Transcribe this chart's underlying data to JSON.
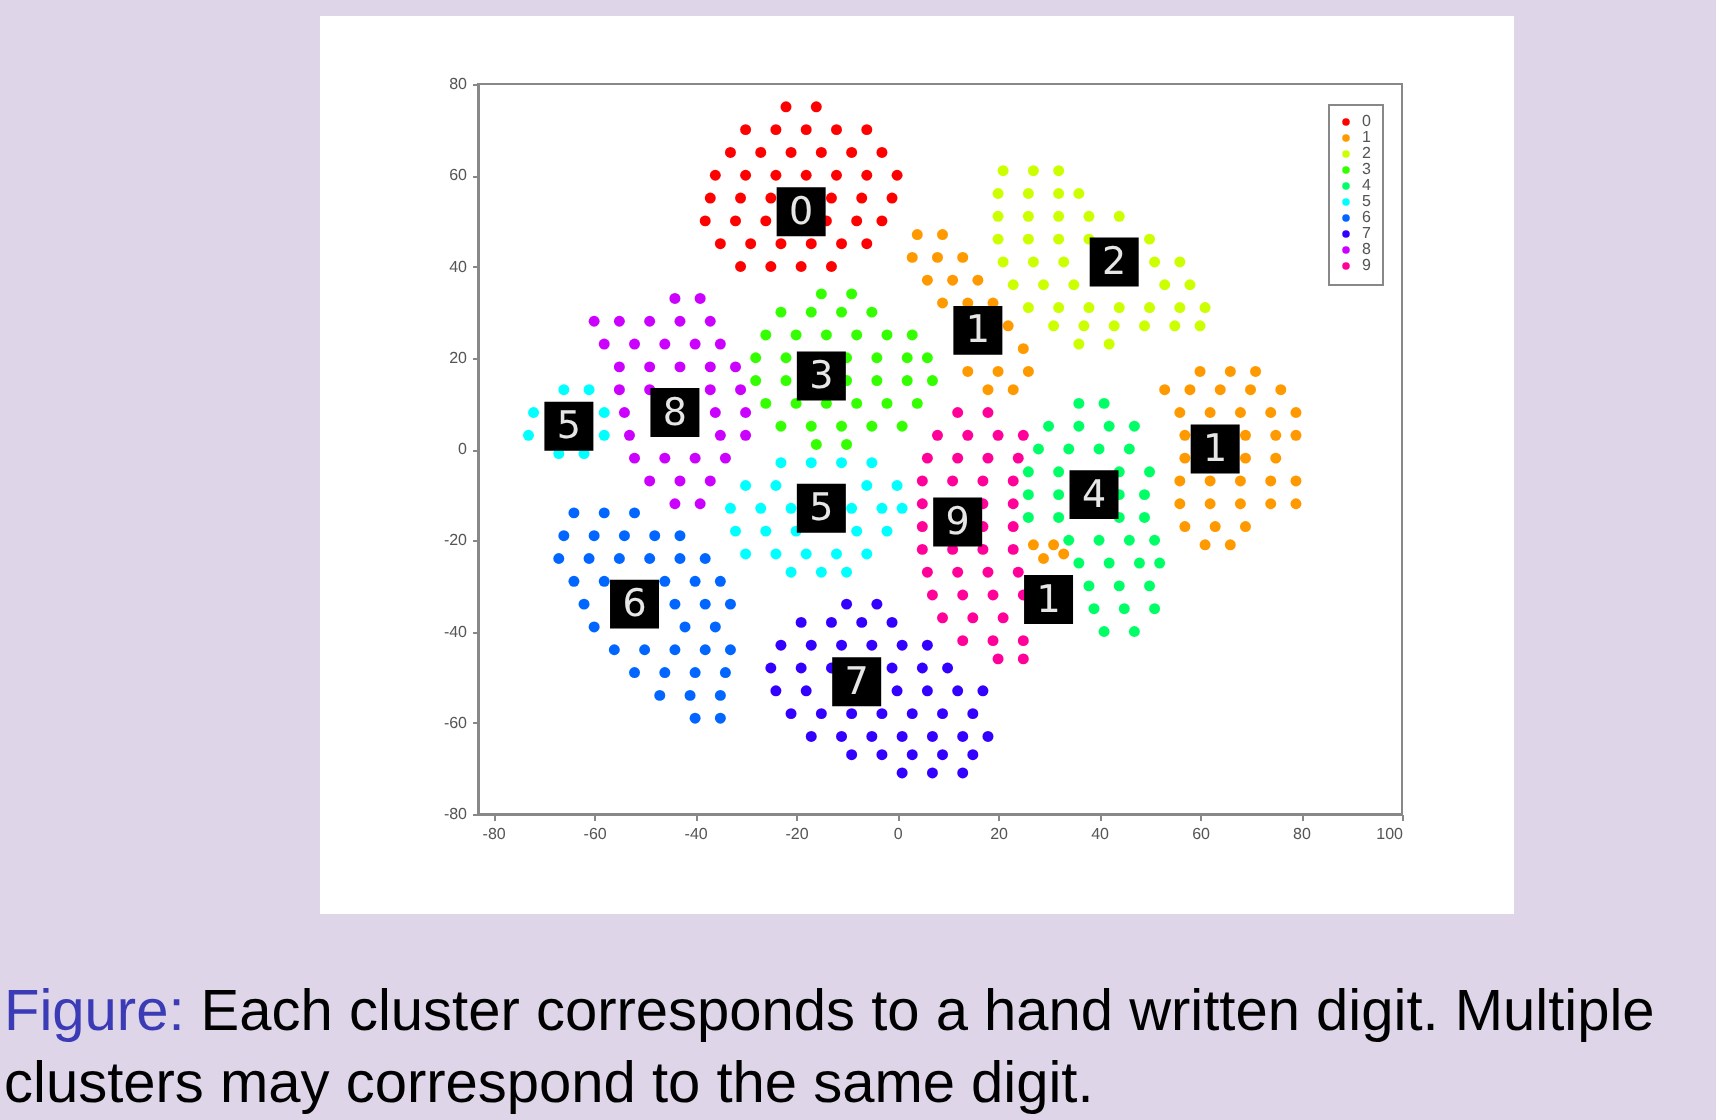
{
  "chart_data": {
    "type": "scatter",
    "xlim": [
      -83,
      100
    ],
    "ylim": [
      -80,
      80
    ],
    "xticks": [
      -80,
      -60,
      -40,
      -20,
      0,
      20,
      40,
      60,
      80,
      100
    ],
    "yticks": [
      -80,
      -60,
      -40,
      -20,
      0,
      20,
      40,
      60,
      80
    ],
    "grid": false,
    "legend": "top right",
    "marker": "circle",
    "series": [
      {
        "name": "0",
        "color": "#ff0000",
        "x": [
          -22,
          -16,
          -30,
          -24,
          -18,
          -12,
          -6,
          -33,
          -27,
          -21,
          -15,
          -9,
          -3,
          -36,
          -30,
          -24,
          -18,
          -12,
          -6,
          0,
          -37,
          -31,
          -25,
          -13,
          -7,
          -1,
          -38,
          -32,
          -26,
          -14,
          -8,
          -3,
          -35,
          -29,
          -23,
          -17,
          -11,
          -6,
          -31,
          -25,
          -19,
          -13
        ],
        "values": [
          75,
          75,
          70,
          70,
          70,
          70,
          70,
          65,
          65,
          65,
          65,
          65,
          65,
          60,
          60,
          60,
          60,
          60,
          60,
          60,
          55,
          55,
          55,
          55,
          55,
          55,
          50,
          50,
          50,
          50,
          50,
          50,
          45,
          45,
          45,
          45,
          45,
          45,
          40,
          40,
          40,
          40
        ]
      },
      {
        "name": "1",
        "color": "#ff9900",
        "x": [
          4,
          9,
          3,
          8,
          13,
          6,
          11,
          16,
          9,
          14,
          19,
          22,
          25,
          14,
          20,
          26,
          18,
          23,
          60,
          66,
          71,
          53,
          58,
          64,
          70,
          76,
          56,
          62,
          68,
          74,
          79,
          57,
          69,
          75,
          79,
          57,
          69,
          75,
          56,
          62,
          68,
          74,
          79,
          56,
          62,
          68,
          74,
          79,
          57,
          63,
          69,
          61,
          66,
          27,
          31,
          29,
          33
        ],
        "values": [
          47,
          47,
          42,
          42,
          42,
          37,
          37,
          37,
          32,
          32,
          32,
          27,
          22,
          17,
          17,
          17,
          13,
          13,
          17,
          17,
          17,
          13,
          13,
          13,
          13,
          13,
          8,
          8,
          8,
          8,
          8,
          3,
          3,
          3,
          3,
          -2,
          -2,
          -2,
          -7,
          -7,
          -7,
          -7,
          -7,
          -12,
          -12,
          -12,
          -12,
          -12,
          -17,
          -17,
          -17,
          -21,
          -21,
          -21,
          -21,
          -24,
          -23
        ]
      },
      {
        "name": "2",
        "color": "#ccff00",
        "x": [
          21,
          27,
          32,
          20,
          26,
          32,
          36,
          20,
          26,
          32,
          38,
          44,
          20,
          26,
          32,
          38,
          50,
          21,
          27,
          33,
          51,
          56,
          23,
          29,
          35,
          53,
          58,
          26,
          32,
          38,
          44,
          50,
          56,
          61,
          31,
          37,
          43,
          49,
          55,
          60,
          36,
          42
        ],
        "values": [
          61,
          61,
          61,
          56,
          56,
          56,
          56,
          51,
          51,
          51,
          51,
          51,
          46,
          46,
          46,
          46,
          46,
          41,
          41,
          41,
          41,
          41,
          36,
          36,
          36,
          36,
          36,
          31,
          31,
          31,
          31,
          31,
          31,
          31,
          27,
          27,
          27,
          27,
          27,
          27,
          23,
          23
        ]
      },
      {
        "name": "3",
        "color": "#33ff00",
        "x": [
          -15,
          -9,
          -23,
          -17,
          -11,
          -5,
          -26,
          -20,
          -14,
          -8,
          -2,
          3,
          -28,
          -22,
          -10,
          -4,
          2,
          6,
          -28,
          -22,
          -10,
          -4,
          2,
          7,
          -26,
          -20,
          -14,
          -8,
          -2,
          4,
          -23,
          -17,
          -11,
          -5,
          1,
          -16,
          -10
        ],
        "values": [
          34,
          34,
          30,
          30,
          30,
          30,
          25,
          25,
          25,
          25,
          25,
          25,
          20,
          20,
          20,
          20,
          20,
          20,
          15,
          15,
          15,
          15,
          15,
          15,
          10,
          10,
          10,
          10,
          10,
          10,
          5,
          5,
          5,
          5,
          5,
          1,
          1
        ]
      },
      {
        "name": "4",
        "color": "#00ff66",
        "x": [
          36,
          41,
          30,
          36,
          42,
          47,
          28,
          34,
          40,
          46,
          26,
          32,
          44,
          50,
          26,
          32,
          44,
          49,
          26,
          32,
          44,
          49,
          34,
          40,
          46,
          51,
          36,
          42,
          48,
          52,
          38,
          44,
          50,
          39,
          45,
          51,
          41,
          47
        ],
        "values": [
          10,
          10,
          5,
          5,
          5,
          5,
          0,
          0,
          0,
          0,
          -5,
          -5,
          -5,
          -5,
          -10,
          -10,
          -10,
          -10,
          -15,
          -15,
          -15,
          -15,
          -20,
          -20,
          -20,
          -20,
          -25,
          -25,
          -25,
          -25,
          -30,
          -30,
          -30,
          -35,
          -35,
          -35,
          -40,
          -40
        ]
      },
      {
        "name": "5",
        "color": "#00ffff",
        "x": [
          -66,
          -61,
          -72,
          -58,
          -73,
          -58,
          -67,
          -62,
          -23,
          -17,
          -11,
          -5,
          -30,
          -24,
          -6,
          0,
          -33,
          -27,
          -21,
          -9,
          -3,
          1,
          -32,
          -26,
          -20,
          -8,
          -2,
          -30,
          -24,
          -18,
          -12,
          -6,
          -21,
          -15,
          -10
        ],
        "values": [
          13,
          13,
          8,
          8,
          3,
          3,
          -1,
          -1,
          -3,
          -3,
          -3,
          -3,
          -8,
          -8,
          -8,
          -8,
          -13,
          -13,
          -13,
          -13,
          -13,
          -13,
          -18,
          -18,
          -18,
          -18,
          -18,
          -23,
          -23,
          -23,
          -23,
          -23,
          -27,
          -27,
          -27
        ]
      },
      {
        "name": "6",
        "color": "#0066ff",
        "x": [
          -64,
          -58,
          -52,
          -66,
          -60,
          -54,
          -48,
          -43,
          -67,
          -61,
          -55,
          -49,
          -43,
          -38,
          -64,
          -58,
          -46,
          -40,
          -35,
          -62,
          -44,
          -38,
          -33,
          -60,
          -42,
          -36,
          -56,
          -50,
          -44,
          -38,
          -33,
          -52,
          -46,
          -40,
          -34,
          -47,
          -41,
          -35,
          -40,
          -35
        ],
        "values": [
          -14,
          -14,
          -14,
          -19,
          -19,
          -19,
          -19,
          -19,
          -24,
          -24,
          -24,
          -24,
          -24,
          -24,
          -29,
          -29,
          -29,
          -29,
          -29,
          -34,
          -34,
          -34,
          -34,
          -39,
          -39,
          -39,
          -44,
          -44,
          -44,
          -44,
          -44,
          -49,
          -49,
          -49,
          -49,
          -54,
          -54,
          -54,
          -59,
          -59
        ]
      },
      {
        "name": "7",
        "color": "#3300ff",
        "x": [
          -10,
          -4,
          -19,
          -13,
          -7,
          -1,
          -23,
          -17,
          -11,
          -5,
          1,
          6,
          -25,
          -19,
          -13,
          -1,
          5,
          10,
          -24,
          -18,
          0,
          6,
          12,
          17,
          -21,
          -15,
          -9,
          -3,
          3,
          9,
          15,
          -17,
          -11,
          -5,
          1,
          7,
          13,
          18,
          -9,
          -3,
          3,
          9,
          15,
          1,
          7,
          13
        ],
        "values": [
          -34,
          -34,
          -38,
          -38,
          -38,
          -38,
          -43,
          -43,
          -43,
          -43,
          -43,
          -43,
          -48,
          -48,
          -48,
          -48,
          -48,
          -48,
          -53,
          -53,
          -53,
          -53,
          -53,
          -53,
          -58,
          -58,
          -58,
          -58,
          -58,
          -58,
          -58,
          -63,
          -63,
          -63,
          -63,
          -63,
          -63,
          -63,
          -67,
          -67,
          -67,
          -67,
          -67,
          -71,
          -71,
          -71
        ]
      },
      {
        "name": "8",
        "color": "#cc00ff",
        "x": [
          -44,
          -39,
          -60,
          -55,
          -49,
          -43,
          -37,
          -58,
          -52,
          -46,
          -40,
          -35,
          -55,
          -49,
          -43,
          -37,
          -32,
          -55,
          -49,
          -37,
          -31,
          -54,
          -36,
          -30,
          -53,
          -35,
          -30,
          -52,
          -46,
          -40,
          -34,
          -49,
          -43,
          -37,
          -44,
          -39
        ],
        "values": [
          33,
          33,
          28,
          28,
          28,
          28,
          28,
          23,
          23,
          23,
          23,
          23,
          18,
          18,
          18,
          18,
          18,
          13,
          13,
          13,
          13,
          8,
          8,
          8,
          3,
          3,
          3,
          -2,
          -2,
          -2,
          -2,
          -7,
          -7,
          -7,
          -12,
          -12
        ]
      },
      {
        "name": "9",
        "color": "#ff0099",
        "x": [
          12,
          18,
          8,
          14,
          20,
          25,
          6,
          12,
          18,
          24,
          5,
          11,
          17,
          23,
          5,
          17,
          23,
          5,
          17,
          23,
          5,
          11,
          17,
          23,
          6,
          12,
          18,
          24,
          7,
          13,
          19,
          25,
          9,
          15,
          21,
          13,
          19,
          25,
          20,
          25
        ],
        "values": [
          8,
          8,
          3,
          3,
          3,
          3,
          -2,
          -2,
          -2,
          -2,
          -7,
          -7,
          -7,
          -7,
          -12,
          -12,
          -12,
          -17,
          -17,
          -17,
          -22,
          -22,
          -22,
          -22,
          -27,
          -27,
          -27,
          -27,
          -32,
          -32,
          -32,
          -32,
          -37,
          -37,
          -37,
          -42,
          -42,
          -42,
          -46,
          -46
        ]
      }
    ],
    "annotations": [
      {
        "text": "0",
        "x": -19,
        "y": 52
      },
      {
        "text": "1",
        "x": 16,
        "y": 26
      },
      {
        "text": "2",
        "x": 43,
        "y": 41
      },
      {
        "text": "3",
        "x": -15,
        "y": 16
      },
      {
        "text": "5",
        "x": -65,
        "y": 5
      },
      {
        "text": "8",
        "x": -44,
        "y": 8
      },
      {
        "text": "5",
        "x": -15,
        "y": -13
      },
      {
        "text": "9",
        "x": 12,
        "y": -16
      },
      {
        "text": "4",
        "x": 39,
        "y": -10
      },
      {
        "text": "1",
        "x": 63,
        "y": 0
      },
      {
        "text": "1",
        "x": 30,
        "y": -33
      },
      {
        "text": "6",
        "x": -52,
        "y": -34
      },
      {
        "text": "7",
        "x": -8,
        "y": -51
      },
      "Figure: Each cluster corresponds to a hand written digit. Multiple clusters may correspond to the same digit."
    ]
  }
}
